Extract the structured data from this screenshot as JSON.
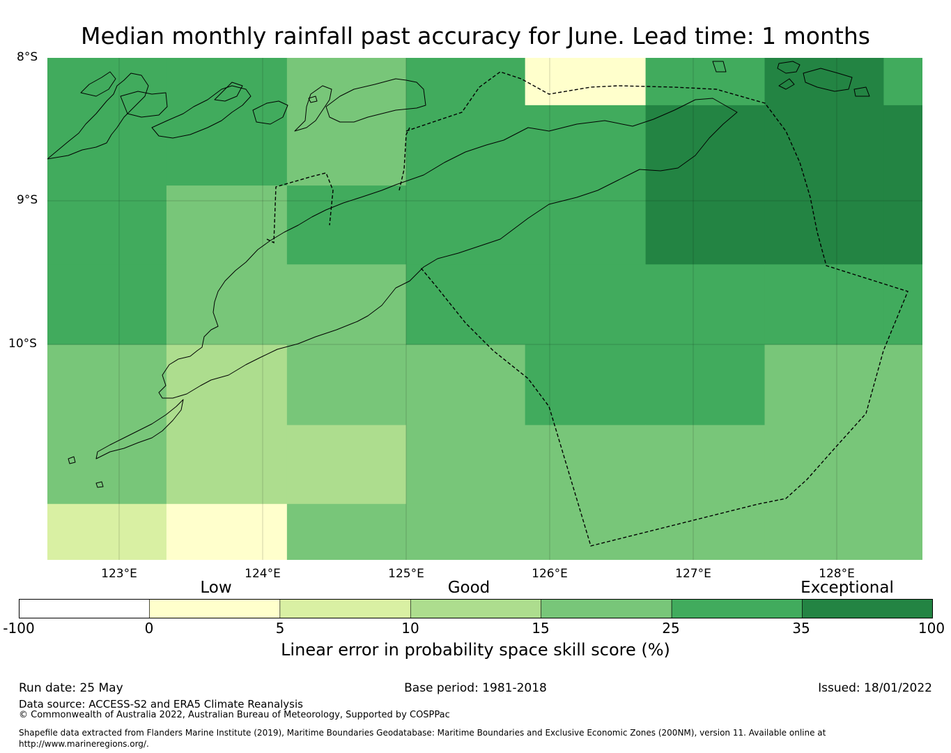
{
  "title": "Median monthly rainfall past accuracy for June. Lead time: 1 months",
  "lat_labels": [
    "8°S",
    "9°S",
    "10°S"
  ],
  "lon_labels": [
    "123°E",
    "124°E",
    "125°E",
    "126°E",
    "127°E",
    "128°E"
  ],
  "categories": [
    "Low",
    "Good",
    "Exceptional"
  ],
  "colorbar": {
    "ticks": [
      "-100",
      "0",
      "5",
      "10",
      "15",
      "25",
      "35",
      "100"
    ],
    "colors": [
      "#ffffff",
      "#ffffcc",
      "#d9f0a3",
      "#addd8e",
      "#78c679",
      "#41ab5d",
      "#238443"
    ],
    "title": "Linear error in probability space skill score (%)"
  },
  "footer": {
    "run_date": "Run date: 25 May",
    "base_period": "Base period: 1981-2018",
    "issued": "Issued: 18/01/2022",
    "data_source": "Data source: ACCESS-S2 and ERA5 Climate Reanalysis",
    "copyright": "© Commonwealth of Australia 2022, Australian Bureau of Meteorology, Supported by COSPPac",
    "shapefile": "Shapefile data extracted from Flanders Marine Institute (2019), Maritime Boundaries Geodatabase: Maritime Boundaries and Exclusive Economic Zones (200NM), version 11. Available online at http://www.marineregions.org/."
  },
  "map": {
    "extent": {
      "lon_min": 122.5,
      "lon_max": 128.6,
      "lat_min": -11.5,
      "lat_max": -8.0
    },
    "grid_cells": {
      "lon_edges": [
        122.5,
        123.33,
        124.17,
        125.0,
        125.83,
        126.67,
        127.5,
        128.33,
        128.6
      ],
      "lat_edges": [
        -8.0,
        -8.33,
        -8.89,
        -9.44,
        -10.0,
        -10.56,
        -11.11,
        -11.5
      ],
      "skill_class_rows": [
        [
          5,
          5,
          4,
          5,
          1,
          5,
          6,
          5
        ],
        [
          5,
          5,
          4,
          5,
          5,
          6,
          6,
          6
        ],
        [
          5,
          4,
          5,
          5,
          5,
          6,
          6,
          6
        ],
        [
          5,
          4,
          4,
          5,
          5,
          5,
          5,
          5
        ],
        [
          4,
          3,
          4,
          4,
          5,
          5,
          4,
          4
        ],
        [
          4,
          3,
          3,
          4,
          4,
          4,
          4,
          4
        ],
        [
          2,
          1,
          4,
          4,
          4,
          4,
          4,
          4
        ]
      ]
    },
    "grid_line_color": "#000000",
    "coastline_color": "#000000",
    "boundary_style": "dashed"
  }
}
